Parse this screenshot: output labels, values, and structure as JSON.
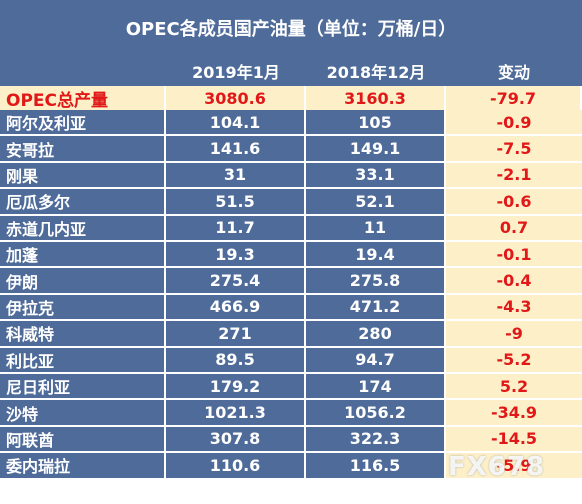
{
  "title": "OPEC各成员国产油量（单位：万桶/日）",
  "headers": {
    "name": "",
    "jan2019": "2019年1月",
    "dec2018": "2018年12月",
    "change": "变动"
  },
  "total": {
    "name": "OPEC总产量",
    "jan2019": "3080.6",
    "dec2018": "3160.3",
    "change": "-79.7"
  },
  "rows": [
    {
      "name": "阿尔及利亚",
      "jan2019": "104.1",
      "dec2018": "105",
      "change": "-0.9"
    },
    {
      "name": "安哥拉",
      "jan2019": "141.6",
      "dec2018": "149.1",
      "change": "-7.5"
    },
    {
      "name": "刚果",
      "jan2019": "31",
      "dec2018": "33.1",
      "change": "-2.1"
    },
    {
      "name": "厄瓜多尔",
      "jan2019": "51.5",
      "dec2018": "52.1",
      "change": "-0.6"
    },
    {
      "name": "赤道几内亚",
      "jan2019": "11.7",
      "dec2018": "11",
      "change": "0.7"
    },
    {
      "name": "加蓬",
      "jan2019": "19.3",
      "dec2018": "19.4",
      "change": "-0.1"
    },
    {
      "name": "伊朗",
      "jan2019": "275.4",
      "dec2018": "275.8",
      "change": "-0.4"
    },
    {
      "name": "伊拉克",
      "jan2019": "466.9",
      "dec2018": "471.2",
      "change": "-4.3"
    },
    {
      "name": "科威特",
      "jan2019": "271",
      "dec2018": "280",
      "change": "-9"
    },
    {
      "name": "利比亚",
      "jan2019": "89.5",
      "dec2018": "94.7",
      "change": "-5.2"
    },
    {
      "name": "尼日利亚",
      "jan2019": "179.2",
      "dec2018": "174",
      "change": "5.2"
    },
    {
      "name": "沙特",
      "jan2019": "1021.3",
      "dec2018": "1056.2",
      "change": "-34.9"
    },
    {
      "name": "阿联酋",
      "jan2019": "307.8",
      "dec2018": "322.3",
      "change": "-14.5"
    },
    {
      "name": "委内瑞拉",
      "jan2019": "110.6",
      "dec2018": "116.5",
      "change": "-5.9"
    }
  ],
  "watermark": "FX678",
  "colors": {
    "header_bg": "#4f6b99",
    "change_bg": "#fdf0c8",
    "change_text": "#e01818",
    "total_bg": "#fdf0c8"
  }
}
